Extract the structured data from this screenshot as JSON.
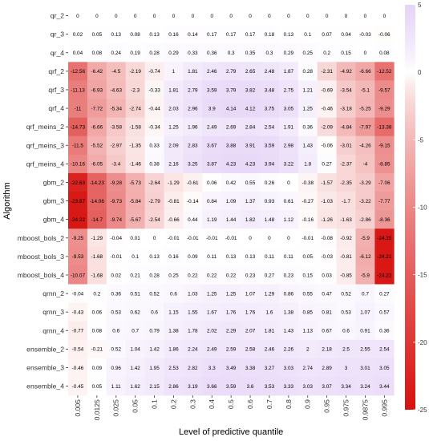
{
  "chart_data": {
    "type": "heatmap",
    "xlabel": "Level of predictive quantile",
    "ylabel": "Algorithm",
    "categories": [
      "0.005",
      "0.0125",
      "0.025",
      "0.05",
      "0.1",
      "0.2",
      "0.3",
      "0.4",
      "0.5",
      "0.6",
      "0.7",
      "0.8",
      "0.9",
      "0.95",
      "0.975",
      "0.9875",
      "0.995"
    ],
    "rows": [
      "qr_2",
      "qr_3",
      "qr_4",
      "qrf_2",
      "qrf_3",
      "qrf_4",
      "qrf_meins_2",
      "qrf_meins_3",
      "qrf_meins_4",
      "gbm_2",
      "gbm_3",
      "gbm_4",
      "mboost_bols_2",
      "mboost_bols_3",
      "mboost_bols_4",
      "qrnn_2",
      "qrnn_3",
      "qrnn_4",
      "ensemble_2",
      "ensemble_3",
      "ensemble_4"
    ],
    "values": [
      [
        0,
        0,
        0,
        0,
        0,
        0,
        0,
        0,
        0,
        0,
        0,
        0,
        0,
        0,
        0,
        0,
        0
      ],
      [
        0.02,
        0.05,
        0.13,
        0.08,
        0.13,
        0.16,
        0.14,
        0.17,
        0.17,
        0.17,
        0.18,
        0.13,
        0.1,
        0.07,
        0.04,
        -0.03,
        -0.06
      ],
      [
        0.04,
        0.08,
        0.24,
        0.19,
        0.28,
        0.29,
        0.33,
        0.36,
        0.3,
        0.35,
        0.3,
        0.29,
        0.25,
        0.2,
        0.15,
        0,
        0.08
      ],
      [
        -12.56,
        -6.42,
        -4.5,
        -2.19,
        -0.74,
        1,
        1.81,
        2.46,
        2.79,
        2.65,
        2.48,
        1.87,
        0.28,
        -2.31,
        -4.92,
        -6.66,
        -12.52
      ],
      [
        -11.13,
        -6.93,
        -4.63,
        -2.3,
        -0.33,
        1.81,
        2.79,
        3.59,
        3.79,
        3.82,
        3.48,
        2.75,
        1.21,
        -0.69,
        -3.54,
        -5.1,
        -9.57
      ],
      [
        -11,
        -7.72,
        -5.34,
        -2.74,
        -0.44,
        2.03,
        2.96,
        3.9,
        4.14,
        4.12,
        3.75,
        3.05,
        1.25,
        -0.46,
        -3.18,
        -5.25,
        -9.29
      ],
      [
        -14.73,
        -6.66,
        -3.58,
        -1.58,
        -0.34,
        1.25,
        1.96,
        2.49,
        2.69,
        2.84,
        2.54,
        1.91,
        0.36,
        -2.09,
        -4.84,
        -7.97,
        -13.38
      ],
      [
        -11.5,
        -5.52,
        -2.97,
        -1.35,
        0.33,
        2.09,
        2.83,
        3.67,
        3.88,
        3.91,
        3.59,
        2.98,
        1.43,
        -0.06,
        -3.01,
        -4.26,
        -9.15
      ],
      [
        -10.16,
        -6.05,
        -3.4,
        -1.46,
        0.38,
        2.16,
        3.25,
        3.87,
        4.23,
        4.23,
        3.94,
        3.22,
        1.8,
        0.27,
        -2.37,
        -4,
        -8.85
      ],
      [
        -22.63,
        -14.23,
        -9.28,
        -5.73,
        -2.64,
        -1.29,
        -0.61,
        0.06,
        0.42,
        0.55,
        0.26,
        0,
        -0.38,
        -1.57,
        -2.35,
        -3.29,
        -7.06
      ],
      [
        -23.87,
        -14.06,
        -9.73,
        -5.84,
        -2.79,
        -0.81,
        -0.14,
        0.84,
        1.09,
        1.37,
        0.93,
        0.61,
        -0.27,
        -1.03,
        -1.7,
        -3.22,
        -7.77
      ],
      [
        -24.22,
        -14.7,
        -9.74,
        -5.67,
        -2.54,
        -0.66,
        0.44,
        1.19,
        1.44,
        1.82,
        1.48,
        1.12,
        -0.16,
        -1.26,
        -1.63,
        -2.86,
        -8.36
      ],
      [
        -9.25,
        -1.29,
        -0.04,
        0.01,
        0,
        -0.01,
        -0.01,
        -0.01,
        -0.01,
        0,
        0,
        0,
        -0.01,
        -0.08,
        -0.92,
        -5.9,
        -24.15
      ],
      [
        -9.53,
        -1.68,
        -0.01,
        0.1,
        0.13,
        0.16,
        0.09,
        0.11,
        0.13,
        0.13,
        0.11,
        0.11,
        0.05,
        -0.03,
        -0.81,
        -6.12,
        -24.21
      ],
      [
        -10.07,
        -1.68,
        0.02,
        0.21,
        0.28,
        0.25,
        0.22,
        0.22,
        0.22,
        0.23,
        0.27,
        0.23,
        0.15,
        0.03,
        -0.85,
        -5.9,
        -24.22
      ],
      [
        -0.04,
        0.2,
        0.36,
        0.51,
        0.52,
        0.6,
        1.03,
        1.25,
        1.25,
        1.07,
        1.29,
        0.86,
        0.55,
        0.47,
        0.52,
        0.7,
        0.27
      ],
      [
        -0.43,
        0.06,
        0.53,
        0.62,
        0.6,
        1.15,
        1.55,
        1.67,
        1.76,
        1.76,
        1.6,
        1.38,
        0.85,
        0.81,
        0.53,
        1.07,
        0.57
      ],
      [
        -0.77,
        0.08,
        0.6,
        0.7,
        0.79,
        1.38,
        1.78,
        2.02,
        2.29,
        2.07,
        1.81,
        1.43,
        1.13,
        0.67,
        0.6,
        0.91,
        0.36
      ],
      [
        -0.54,
        -0.21,
        0.52,
        1.04,
        1.42,
        1.86,
        2.24,
        2.49,
        2.59,
        2.58,
        2.46,
        2.26,
        2,
        2.18,
        2.5,
        2.55,
        2.54
      ],
      [
        -0.46,
        0.09,
        0.96,
        1.42,
        1.95,
        2.53,
        2.82,
        3.3,
        3.49,
        3.38,
        3.27,
        3.03,
        2.74,
        2.89,
        3,
        3.01,
        3.05
      ],
      [
        -0.45,
        0.05,
        1.11,
        1.62,
        2.15,
        2.86,
        3.19,
        3.66,
        3.59,
        3.6,
        3.53,
        3.33,
        3.03,
        3.07,
        3.34,
        3.24,
        3.44
      ]
    ],
    "value_labels": [
      [
        "0",
        "0",
        "0",
        "0",
        "0",
        "0",
        "0",
        "0",
        "0",
        "0",
        "0",
        "0",
        "0",
        "0",
        "0",
        "0",
        "0"
      ],
      [
        "0.02",
        "0.05",
        "0.13",
        "0.08",
        "0.13",
        "0.16",
        "0.14",
        "0.17",
        "0.17",
        "0.17",
        "0.18",
        "0.13",
        "0.1",
        "0.07",
        "0.04",
        "-0.03",
        "-0.06"
      ],
      [
        "0.04",
        "0.08",
        "0.24",
        "0.19",
        "0.28",
        "0.29",
        "0.33",
        "0.36",
        "0.3",
        "0.35",
        "0.3",
        "0.29",
        "0.25",
        "0.2",
        "0.15",
        "0",
        "0.08"
      ],
      [
        "-12.56",
        "-6.42",
        "-4.5",
        "-2.19",
        "-0.74",
        "1",
        "1.81",
        "2.46",
        "2.79",
        "2.65",
        "2.48",
        "1.87",
        "0.28",
        "-2.31",
        "-4.92",
        "-6.66",
        "-12.52"
      ],
      [
        "-11.13",
        "-6.93",
        "-4.63",
        "-2.3",
        "-0.33",
        "1.81",
        "2.79",
        "3.59",
        "3.79",
        "3.82",
        "3.48",
        "2.75",
        "1.21",
        "-0.69",
        "-3.54",
        "-5.1",
        "-9.57"
      ],
      [
        "-11",
        "-7.72",
        "-5.34",
        "-2.74",
        "-0.44",
        "2.03",
        "2.96",
        "3.9",
        "4.14",
        "4.12",
        "3.75",
        "3.05",
        "1.25",
        "-0.46",
        "-3.18",
        "-5.25",
        "-9.29"
      ],
      [
        "-14.73",
        "-6.66",
        "-3.58",
        "-1.58",
        "-0.34",
        "1.25",
        "1.96",
        "2.49",
        "2.69",
        "2.84",
        "2.54",
        "1.91",
        "0.36",
        "-2.09",
        "-4.84",
        "-7.97",
        "-13.38"
      ],
      [
        "-11.5",
        "-5.52",
        "-2.97",
        "-1.35",
        "0.33",
        "2.09",
        "2.83",
        "3.67",
        "3.88",
        "3.91",
        "3.59",
        "2.98",
        "1.43",
        "-0.06",
        "-3.01",
        "-4.26",
        "-9.15"
      ],
      [
        "-10.16",
        "-6.05",
        "-3.4",
        "-1.46",
        "0.38",
        "2.16",
        "3.25",
        "3.87",
        "4.23",
        "4.23",
        "3.94",
        "3.22",
        "1.8",
        "0.27",
        "-2.37",
        "-4",
        "-8.85"
      ],
      [
        "-22.63",
        "-14.23",
        "-9.28",
        "-5.73",
        "-2.64",
        "-1.29",
        "-0.61",
        "0.06",
        "0.42",
        "0.55",
        "0.26",
        "0",
        "-0.38",
        "-1.57",
        "-2.35",
        "-3.29",
        "-7.06"
      ],
      [
        "-23.87",
        "-14.06",
        "-9.73",
        "-5.84",
        "-2.79",
        "-0.81",
        "-0.14",
        "0.84",
        "1.09",
        "1.37",
        "0.93",
        "0.61",
        "-0.27",
        "-1.03",
        "-1.7",
        "-3.22",
        "-7.77"
      ],
      [
        "-24.22",
        "-14.7",
        "-9.74",
        "-5.67",
        "-2.54",
        "-0.66",
        "0.44",
        "1.19",
        "1.44",
        "1.82",
        "1.48",
        "1.12",
        "-0.16",
        "-1.26",
        "-1.63",
        "-2.86",
        "-8.36"
      ],
      [
        "-9.25",
        "-1.29",
        "-0.04",
        "0.01",
        "0",
        "-0.01",
        "-0.01",
        "-0.01",
        "-0.01",
        "0",
        "0",
        "0",
        "-0.01",
        "-0.08",
        "-0.92",
        "-5.9",
        "-24.15"
      ],
      [
        "-9.53",
        "-1.68",
        "-0.01",
        "0.1",
        "0.13",
        "0.16",
        "0.09",
        "0.11",
        "0.13",
        "0.13",
        "0.11",
        "0.11",
        "0.05",
        "-0.03",
        "-0.81",
        "-6.12",
        "-24.21"
      ],
      [
        "-10.07",
        "-1.68",
        "0.02",
        "0.21",
        "0.28",
        "0.25",
        "0.22",
        "0.22",
        "0.22",
        "0.23",
        "0.27",
        "0.23",
        "0.15",
        "0.03",
        "-0.85",
        "-5.9",
        "-24.22"
      ],
      [
        "-0.04",
        "0.2",
        "0.36",
        "0.51",
        "0.52",
        "0.6",
        "1.03",
        "1.25",
        "1.25",
        "1.07",
        "1.29",
        "0.86",
        "0.55",
        "0.47",
        "0.52",
        "0.7",
        "0.27"
      ],
      [
        "-0.43",
        "0.06",
        "0.53",
        "0.62",
        "0.6",
        "1.15",
        "1.55",
        "1.67",
        "1.76",
        "1.76",
        "1.6",
        "1.38",
        "0.85",
        "0.81",
        "0.53",
        "1.07",
        "0.57"
      ],
      [
        "-0.77",
        "0.08",
        "0.6",
        "0.7",
        "0.79",
        "1.38",
        "1.78",
        "2.02",
        "2.29",
        "2.07",
        "1.81",
        "1.43",
        "1.13",
        "0.67",
        "0.6",
        "0.91",
        "0.36"
      ],
      [
        "-0.54",
        "-0.21",
        "0.52",
        "1.04",
        "1.42",
        "1.86",
        "2.24",
        "2.49",
        "2.59",
        "2.58",
        "2.46",
        "2.26",
        "2",
        "2.18",
        "2.5",
        "2.55",
        "2.54"
      ],
      [
        "-0.46",
        "0.09",
        "0.96",
        "1.42",
        "1.95",
        "2.53",
        "2.82",
        "3.3",
        "3.49",
        "3.38",
        "3.27",
        "3.03",
        "2.74",
        "2.89",
        "3",
        "3.01",
        "3.05"
      ],
      [
        "-0.45",
        "0.05",
        "1.11",
        "1.62",
        "2.15",
        "2.86",
        "3.19",
        "3.66",
        "3.59",
        "3.6",
        "3.53",
        "3.33",
        "3.03",
        "3.07",
        "3.34",
        "3.24",
        "3.44"
      ]
    ],
    "color_scale": {
      "min": -25,
      "max": 5,
      "low_color": "#d7120f",
      "mid_color": "#ffffff",
      "high_color": "#e5d3f7",
      "ticks": [
        5,
        0,
        -5,
        -10,
        -15,
        -20,
        -25
      ]
    },
    "legend": "right",
    "grid": false
  }
}
